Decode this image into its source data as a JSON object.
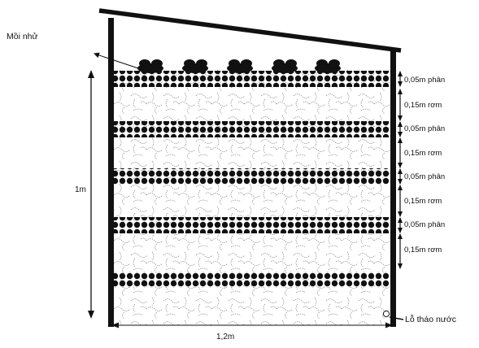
{
  "labels": {
    "bait": "Mồi nhử",
    "height": "1m",
    "width": "1,2m",
    "drain": "Lỗ tháo nước"
  },
  "layers": [
    {
      "label": "0,05m phân"
    },
    {
      "label": "0,15m rơm"
    },
    {
      "label": "0,05m phân"
    },
    {
      "label": "0,15m rơm"
    },
    {
      "label": "0,05m phân"
    },
    {
      "label": "0,15m rơm"
    },
    {
      "label": "0,05m phân"
    },
    {
      "label": "0,15m rơm"
    }
  ],
  "colors": {
    "ink": "#111111",
    "background": "#ffffff",
    "straw_texture": "#8a8a8a"
  }
}
